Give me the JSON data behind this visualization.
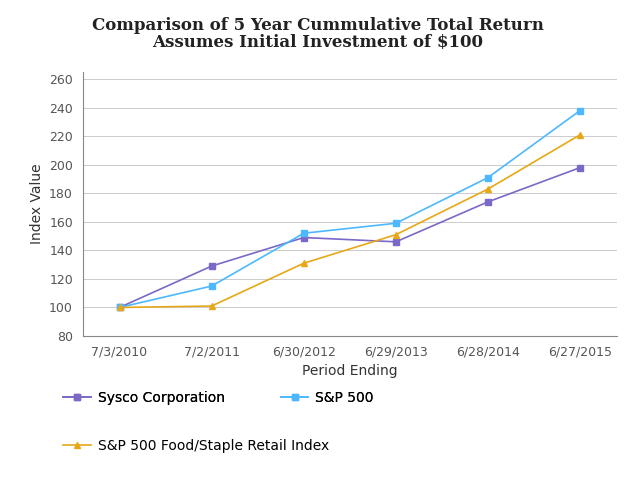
{
  "title_line1": "Comparison of 5 Year Cummulative Total Return",
  "title_line2": "Assumes Initial Investment of $100",
  "xlabel": "Period Ending",
  "ylabel": "Index Value",
  "x_labels": [
    "7/3/2010",
    "7/2/2011",
    "6/30/2012",
    "6/29/2013",
    "6/28/2014",
    "6/27/2015"
  ],
  "sysco": [
    100,
    129,
    149,
    146,
    174,
    198
  ],
  "sp500": [
    100,
    115,
    152,
    159,
    191,
    238
  ],
  "sp500_food": [
    100,
    101,
    131,
    151,
    183,
    221
  ],
  "sysco_color": "#7b68c8",
  "sp500_color": "#4db8ff",
  "sp500_food_color": "#e6a817",
  "ylim": [
    80,
    265
  ],
  "yticks": [
    80,
    100,
    120,
    140,
    160,
    180,
    200,
    220,
    240,
    260
  ],
  "legend_sysco": "Sysco Corporation",
  "legend_sp500": "S&P 500",
  "legend_sp500_food": "S&P 500 Food/Staple Retail Index",
  "title_fontsize": 12,
  "axis_label_fontsize": 10,
  "tick_fontsize": 9,
  "legend_fontsize": 10,
  "background_color": "#ffffff"
}
